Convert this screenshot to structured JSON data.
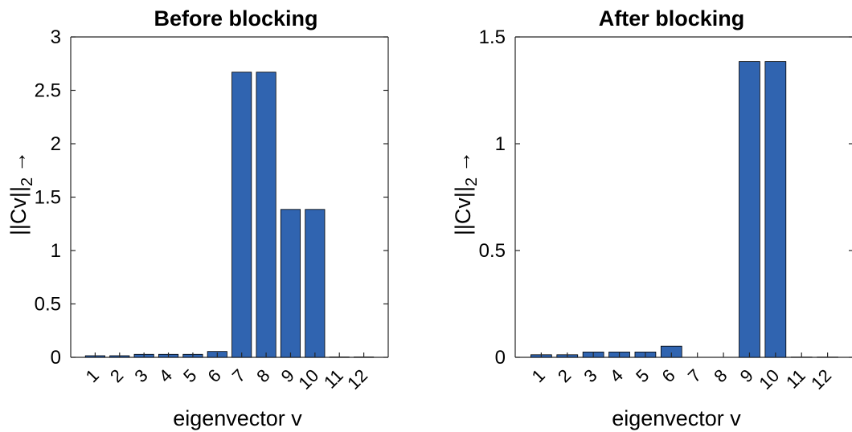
{
  "chart_data": [
    {
      "type": "bar",
      "title": "Before blocking",
      "xlabel": "eigenvector v",
      "ylabel": "||Cv||",
      "ylabel_subscript": "2",
      "ylabel_arrow": "→",
      "categories": [
        "1",
        "2",
        "3",
        "4",
        "5",
        "6",
        "7",
        "8",
        "9",
        "10",
        "11",
        "12"
      ],
      "values": [
        0.015,
        0.015,
        0.028,
        0.028,
        0.028,
        0.055,
        2.67,
        2.67,
        1.385,
        1.385,
        0.003,
        0.003
      ],
      "ylim": [
        0,
        3
      ],
      "yticks": [
        "0",
        "0.5",
        "1",
        "1.5",
        "2",
        "2.5",
        "3"
      ],
      "bar_color": "#3064b0",
      "grid": false,
      "legend": "none"
    },
    {
      "type": "bar",
      "title": "After blocking",
      "xlabel": "eigenvector v",
      "ylabel": "||Cv||",
      "ylabel_subscript": "2",
      "ylabel_arrow": "→",
      "categories": [
        "1",
        "2",
        "3",
        "4",
        "5",
        "6",
        "7",
        "8",
        "9",
        "10",
        "11",
        "12"
      ],
      "values": [
        0.012,
        0.012,
        0.025,
        0.025,
        0.025,
        0.052,
        0.0,
        0.0,
        1.385,
        1.385,
        0.001,
        0.001
      ],
      "ylim": [
        0,
        1.5
      ],
      "yticks": [
        "0",
        "0.5",
        "1",
        "1.5"
      ],
      "bar_color": "#3064b0",
      "grid": false,
      "legend": "none"
    }
  ]
}
